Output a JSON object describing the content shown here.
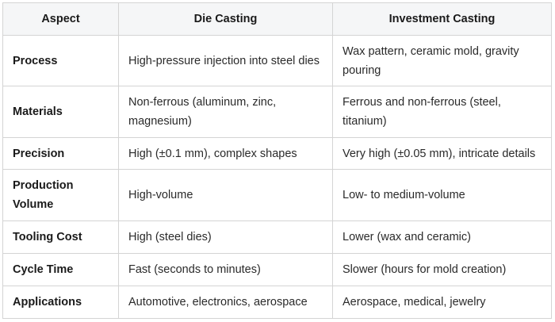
{
  "table": {
    "headers": [
      "Aspect",
      "Die Casting",
      "Investment Casting"
    ],
    "rows": [
      {
        "aspect": "Process",
        "die": "High-pressure injection into steel dies",
        "investment": "Wax pattern, ceramic mold, gravity pouring"
      },
      {
        "aspect": "Materials",
        "die": "Non-ferrous (aluminum, zinc, magnesium)",
        "investment": "Ferrous and non-ferrous (steel, titanium)"
      },
      {
        "aspect": "Precision",
        "die": "High (±0.1 mm), complex shapes",
        "investment": "Very high (±0.05 mm), intricate details"
      },
      {
        "aspect": "Production Volume",
        "die": "High-volume",
        "investment": "Low- to medium-volume"
      },
      {
        "aspect": "Tooling Cost",
        "die": "High (steel dies)",
        "investment": "Lower (wax and ceramic)"
      },
      {
        "aspect": "Cycle Time",
        "die": "Fast (seconds to minutes)",
        "investment": "Slower (hours for mold creation)"
      },
      {
        "aspect": "Applications",
        "die": "Automotive, electronics, aerospace",
        "investment": "Aerospace, medical, jewelry"
      }
    ]
  }
}
